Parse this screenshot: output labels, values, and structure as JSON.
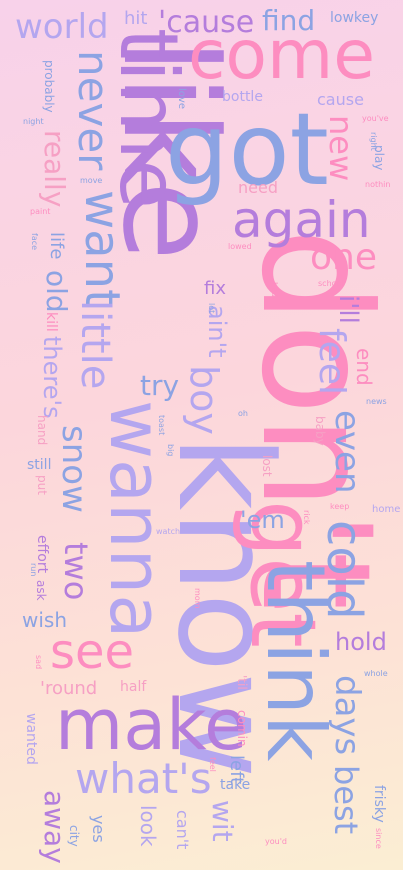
{
  "colors": {
    "purple": "#b47ddc",
    "blue": "#8ca3e3",
    "lavender": "#b4a6ef",
    "pink": "#fd8dc0",
    "softpink": "#f6a0c4"
  },
  "words": [
    {
      "text": "don't",
      "color": "pink"
    },
    {
      "text": "know",
      "color": "lavender"
    },
    {
      "text": "like",
      "color": "purple"
    },
    {
      "text": "got",
      "color": "blue"
    },
    {
      "text": "time",
      "color": "purple"
    },
    {
      "text": "come",
      "color": "pink"
    },
    {
      "text": "wanna",
      "color": "lavender"
    },
    {
      "text": "get",
      "color": "pink"
    },
    {
      "text": "think",
      "color": "blue"
    },
    {
      "text": "make",
      "color": "purple"
    },
    {
      "text": "again",
      "color": "purple"
    },
    {
      "text": "want",
      "color": "blue"
    },
    {
      "text": "little",
      "color": "lavender"
    },
    {
      "text": "never",
      "color": "blue"
    },
    {
      "text": "what's",
      "color": "lavender"
    },
    {
      "text": "cold",
      "color": "blue"
    },
    {
      "text": "see",
      "color": "pink"
    },
    {
      "text": "snow",
      "color": "blue"
    },
    {
      "text": "world",
      "color": "lavender"
    },
    {
      "text": "one",
      "color": "pink"
    },
    {
      "text": "boy",
      "color": "lavender"
    },
    {
      "text": "feel",
      "color": "lavender"
    },
    {
      "text": "days",
      "color": "blue"
    },
    {
      "text": "even",
      "color": "blue"
    },
    {
      "text": "best",
      "color": "blue"
    },
    {
      "text": "two",
      "color": "purple"
    },
    {
      "text": "new",
      "color": "pink"
    },
    {
      "text": "'cause",
      "color": "purple"
    },
    {
      "text": "find",
      "color": "blue"
    },
    {
      "text": "really",
      "color": "softpink"
    },
    {
      "text": "away",
      "color": "purple"
    },
    {
      "text": "old",
      "color": "blue"
    },
    {
      "text": "there's",
      "color": "lavender"
    },
    {
      "text": "try",
      "color": "blue"
    },
    {
      "text": "ain't",
      "color": "lavender"
    },
    {
      "text": "i'll",
      "color": "purple"
    },
    {
      "text": "'em",
      "color": "blue"
    },
    {
      "text": "hold",
      "color": "purple"
    },
    {
      "text": "wit",
      "color": "lavender"
    },
    {
      "text": "wish",
      "color": "blue"
    },
    {
      "text": "end",
      "color": "pink"
    },
    {
      "text": "need",
      "color": "softpink"
    },
    {
      "text": "'round",
      "color": "softpink"
    },
    {
      "text": "look",
      "color": "lavender"
    },
    {
      "text": "cause",
      "color": "lavender"
    },
    {
      "text": "hit",
      "color": "lavender"
    },
    {
      "text": "left",
      "color": "blue"
    },
    {
      "text": "fix",
      "color": "purple"
    },
    {
      "text": "half",
      "color": "softpink"
    },
    {
      "text": "can't",
      "color": "lavender"
    },
    {
      "text": "life",
      "color": "blue"
    },
    {
      "text": "bottle",
      "color": "lavender"
    },
    {
      "text": "lowkey",
      "color": "blue"
    },
    {
      "text": "take",
      "color": "blue"
    },
    {
      "text": "yes",
      "color": "blue"
    },
    {
      "text": "kill",
      "color": "pink"
    },
    {
      "text": "still",
      "color": "blue"
    },
    {
      "text": "comin",
      "color": "pink"
    },
    {
      "text": "wanted",
      "color": "lavender"
    },
    {
      "text": "frisky",
      "color": "blue"
    },
    {
      "text": "effort",
      "color": "purple"
    },
    {
      "text": "hand",
      "color": "softpink"
    },
    {
      "text": "put",
      "color": "softpink"
    },
    {
      "text": "ask",
      "color": "purple"
    },
    {
      "text": "probably",
      "color": "blue"
    },
    {
      "text": "'til",
      "color": "softpink"
    },
    {
      "text": "lost",
      "color": "softpink"
    },
    {
      "text": "baby",
      "color": "softpink"
    },
    {
      "text": "home",
      "color": "lavender"
    },
    {
      "text": "city",
      "color": "blue"
    },
    {
      "text": "play",
      "color": "blue"
    },
    {
      "text": "love",
      "color": "blue"
    },
    {
      "text": "move",
      "color": "blue"
    },
    {
      "text": "paint",
      "color": "pink"
    },
    {
      "text": "lowed",
      "color": "pink"
    },
    {
      "text": "school",
      "color": "pink"
    },
    {
      "text": "bed",
      "color": "pink"
    },
    {
      "text": "news",
      "color": "blue"
    },
    {
      "text": "oh",
      "color": "blue"
    },
    {
      "text": "talk",
      "color": "pink"
    },
    {
      "text": "keep",
      "color": "pink"
    },
    {
      "text": "rick",
      "color": "pink"
    },
    {
      "text": "watch",
      "color": "lavender"
    },
    {
      "text": "nothin",
      "color": "pink"
    },
    {
      "text": "you've",
      "color": "pink"
    },
    {
      "text": "right",
      "color": "blue"
    },
    {
      "text": "night",
      "color": "blue"
    },
    {
      "text": "face",
      "color": "blue"
    },
    {
      "text": "run",
      "color": "blue"
    },
    {
      "text": "sad",
      "color": "pink"
    },
    {
      "text": "mom",
      "color": "pink"
    },
    {
      "text": "whole",
      "color": "blue"
    },
    {
      "text": "feel",
      "color": "pink"
    },
    {
      "text": "you'd",
      "color": "pink"
    },
    {
      "text": "since",
      "color": "pink"
    },
    {
      "text": "toast",
      "color": "blue"
    },
    {
      "text": "big",
      "color": "blue"
    },
    {
      "text": "lot",
      "color": "blue"
    }
  ]
}
